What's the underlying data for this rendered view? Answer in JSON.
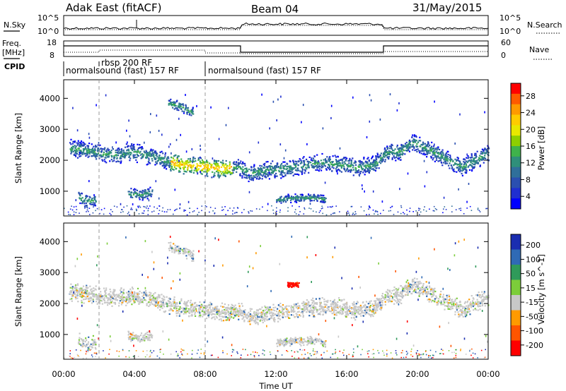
{
  "header": {
    "title": "Adak East (fitACF)",
    "beam": "Beam 04",
    "date": "31/May/2015"
  },
  "side_labels": {
    "nsky": "N.Sky",
    "nsearch": "N.Search",
    "freq_top": "Freq.",
    "freq_unit": "[MHz]",
    "nave": "Nave",
    "cpid": "CPID"
  },
  "noise_panel": {
    "left_ticks": [
      "10^5",
      "10^0"
    ],
    "right_ticks": [
      "10^5",
      "10^0"
    ]
  },
  "freq_panel": {
    "left_ticks": [
      "18",
      "8"
    ],
    "right_ticks": [
      "60",
      "0"
    ]
  },
  "cpid_panel": {
    "segments": [
      {
        "label": "normalsound (fast) 157 RF",
        "start_hour": 0
      },
      {
        "label": "rbsp 200 RF",
        "start_hour": 2
      },
      {
        "label": "normalsound (fast) 157 RF",
        "start_hour": 8
      }
    ]
  },
  "power_colorbar": {
    "label": "Power [dB]",
    "ticks": [
      "28",
      "24",
      "20",
      "16",
      "12",
      "8",
      "4"
    ],
    "colors": [
      "#ff0000",
      "#ff5a00",
      "#ff9a00",
      "#ffcc00",
      "#e8e800",
      "#8ecf00",
      "#3fb24b",
      "#2f8f7a",
      "#2f6f9a",
      "#2a4fb0",
      "#1f2fd0",
      "#0000ff"
    ]
  },
  "velocity_colorbar": {
    "label": "Velocity [m s^-1]",
    "ticks": [
      "200",
      "100",
      "50",
      "15",
      "-15",
      "-50",
      "-100",
      "-200"
    ],
    "colors": [
      "#1a2db0",
      "#2f6ab5",
      "#2f9a5a",
      "#7ccd3a",
      "#c8c8c8",
      "#ff9a00",
      "#ff5500",
      "#ff0000"
    ]
  },
  "chart_data": [
    {
      "type": "heatmap",
      "name": "Power",
      "xlabel": "",
      "ylabel": "Slant Range [km]",
      "xlim": [
        0,
        24
      ],
      "ylim": [
        200,
        4600
      ],
      "y_ticks": [
        1000,
        2000,
        3000,
        4000
      ],
      "x_ticks": [
        0,
        4,
        8,
        12,
        16,
        20,
        24
      ],
      "bands": [
        {
          "desc": "main",
          "points": [
            [
              0.3,
              2400
            ],
            [
              1.0,
              2350
            ],
            [
              2.0,
              2250
            ],
            [
              3.0,
              2200
            ],
            [
              4.0,
              2280
            ],
            [
              5.0,
              2150
            ],
            [
              6.0,
              1950
            ],
            [
              7.0,
              1850
            ],
            [
              8.0,
              1800
            ],
            [
              9.0,
              1750
            ],
            [
              9.8,
              1800
            ],
            [
              10.5,
              1600
            ],
            [
              11.5,
              1700
            ],
            [
              12.5,
              1750
            ],
            [
              13.5,
              1850
            ],
            [
              14.5,
              1950
            ],
            [
              15.5,
              1900
            ],
            [
              16.5,
              1800
            ],
            [
              17.5,
              1850
            ],
            [
              18.2,
              2250
            ],
            [
              19.0,
              2300
            ],
            [
              19.7,
              2600
            ],
            [
              20.5,
              2400
            ],
            [
              21.5,
              2100
            ],
            [
              22.5,
              1800
            ],
            [
              23.5,
              2100
            ],
            [
              24.0,
              2250
            ]
          ],
          "width": 320
        },
        {
          "desc": "lower-left",
          "points": [
            [
              0.8,
              850
            ],
            [
              1.3,
              700
            ],
            [
              1.8,
              750
            ]
          ],
          "width": 250
        },
        {
          "desc": "lower-mid",
          "points": [
            [
              3.6,
              950
            ],
            [
              4.3,
              900
            ],
            [
              5.0,
              1000
            ]
          ],
          "width": 200
        },
        {
          "desc": "lower-12h",
          "points": [
            [
              12.0,
              750
            ],
            [
              13.0,
              800
            ],
            [
              14.0,
              820
            ],
            [
              14.8,
              750
            ]
          ],
          "width": 150
        },
        {
          "desc": "high-6h",
          "points": [
            [
              5.9,
              3850
            ],
            [
              6.6,
              3750
            ],
            [
              7.3,
              3550
            ]
          ],
          "width": 200
        }
      ]
    },
    {
      "type": "heatmap",
      "name": "Velocity",
      "xlabel": "Time UT",
      "ylabel": "Slant Range [km]",
      "xlim": [
        0,
        24
      ],
      "ylim": [
        200,
        4600
      ],
      "y_ticks": [
        1000,
        2000,
        3000,
        4000
      ],
      "x_ticks": [
        0,
        4,
        8,
        12,
        16,
        20,
        24
      ],
      "x_tick_labels": [
        "00:00",
        "04:00",
        "08:00",
        "12:00",
        "16:00",
        "20:00",
        "00:00"
      ]
    }
  ]
}
